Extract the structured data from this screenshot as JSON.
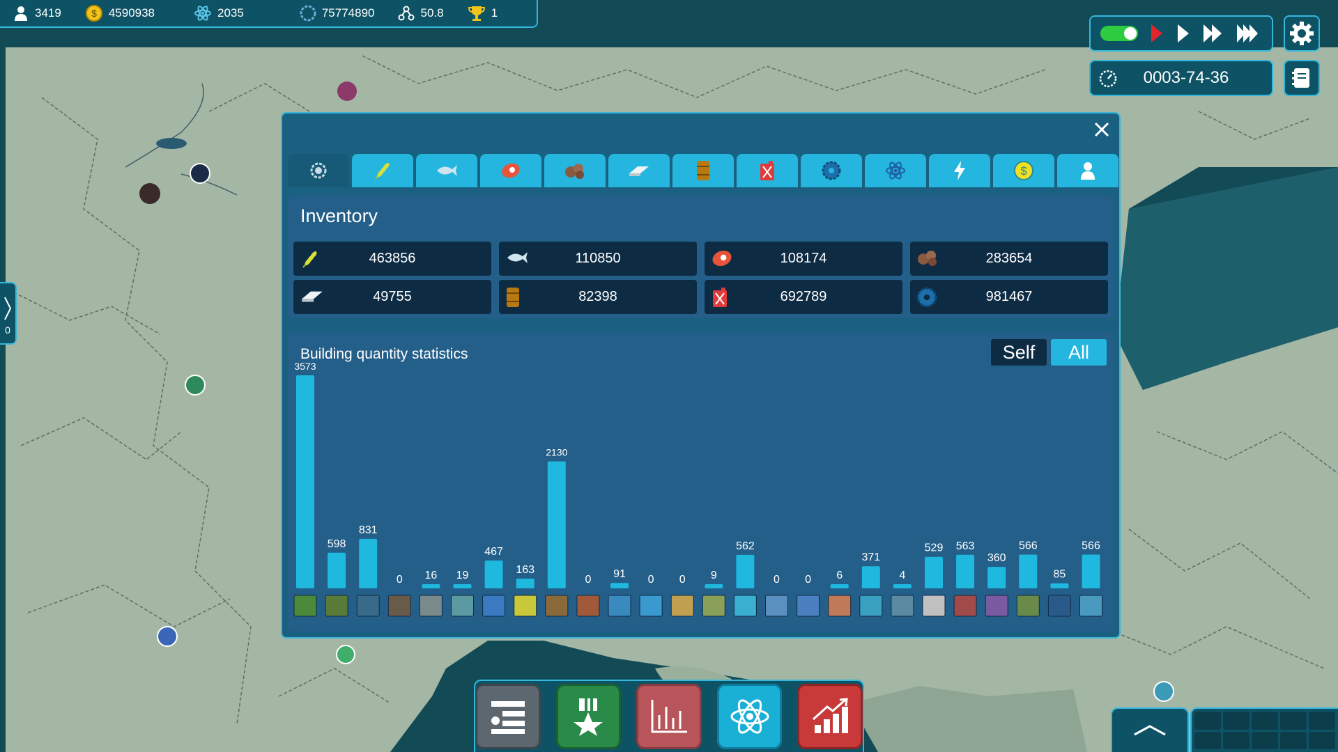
{
  "resources": {
    "population": "3419",
    "money": "4590938",
    "research": "2035",
    "gdp": "75774890",
    "influence": "50.8",
    "rank": "1"
  },
  "speed_controls": {
    "date": "0003-74-36"
  },
  "edge_tab": {
    "count": "0"
  },
  "dialog": {
    "tabs": [
      "all-icon",
      "grain-icon",
      "fish-icon",
      "meat-icon",
      "ore-icon",
      "metal-icon",
      "oil-barrel-icon",
      "fuel-can-icon",
      "gear-icon",
      "atom-icon",
      "lightning-icon",
      "money-icon",
      "person-icon"
    ],
    "inventory": {
      "title": "Inventory",
      "items": [
        {
          "icon": "grain-icon",
          "value": "463856"
        },
        {
          "icon": "fish-icon",
          "value": "110850"
        },
        {
          "icon": "meat-icon",
          "value": "108174"
        },
        {
          "icon": "ore-icon",
          "value": "283654"
        },
        {
          "icon": "metal-icon",
          "value": "49755"
        },
        {
          "icon": "oil-barrel-icon",
          "value": "82398"
        },
        {
          "icon": "fuel-can-icon",
          "value": "692789"
        },
        {
          "icon": "gear-icon",
          "value": "981467"
        }
      ]
    },
    "stats": {
      "title": "Building quantity statistics",
      "self_label": "Self",
      "all_label": "All"
    }
  },
  "chart_data": {
    "type": "bar",
    "values": [
      3573,
      598,
      831,
      0,
      16,
      19,
      467,
      163,
      2130,
      0,
      91,
      0,
      0,
      9,
      562,
      0,
      0,
      6,
      371,
      4,
      529,
      563,
      360,
      566,
      85,
      566
    ],
    "accent": "#1fb8df"
  },
  "colors": {
    "panel": "#0e5365",
    "border": "#35b7dc",
    "dialog": "#1a6081",
    "tab": "#24b6de",
    "cell": "#0e2b44"
  }
}
